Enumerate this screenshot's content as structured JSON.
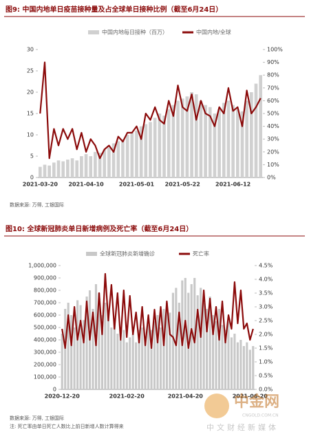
{
  "chart_data": [
    {
      "type": "combo",
      "title": "图9: 中国内地单日疫苗接种量及占全球单日接种比例（截至6月24日）",
      "source": "数据来源: 万得, 工银国际",
      "legend": "top",
      "grid": false,
      "categories": [
        "2021-03-20",
        null,
        null,
        null,
        null,
        null,
        null,
        null,
        null,
        null,
        "2021-04-10",
        null,
        null,
        null,
        null,
        null,
        null,
        null,
        null,
        null,
        null,
        "2021-05-01",
        null,
        null,
        null,
        null,
        null,
        null,
        null,
        null,
        null,
        "2021-05-22",
        null,
        null,
        null,
        null,
        null,
        null,
        null,
        null,
        null,
        null,
        "2021-06-12",
        null,
        null,
        null,
        null,
        null,
        null
      ],
      "ylim": [
        0,
        30
      ],
      "yticks": [
        0,
        5,
        10,
        15,
        20,
        25,
        30
      ],
      "y2lim": [
        0,
        100
      ],
      "y2ticks": [
        {
          "value": 0,
          "label": "0%"
        },
        {
          "value": 10,
          "label": "10%"
        },
        {
          "value": 20,
          "label": "20%"
        },
        {
          "value": 30,
          "label": "30%"
        },
        {
          "value": 40,
          "label": "40%"
        },
        {
          "value": 50,
          "label": "50%"
        },
        {
          "value": 60,
          "label": "60%"
        },
        {
          "value": 70,
          "label": "70%"
        },
        {
          "value": 80,
          "label": "80%"
        },
        {
          "value": 90,
          "label": "90%"
        },
        {
          "value": 100,
          "label": "100%"
        }
      ],
      "series": [
        {
          "name": "中国内地每日接种（百万）",
          "kind": "bar",
          "color": "#d0d0d0",
          "values": [
            2.5,
            3.0,
            2.8,
            3.5,
            4.0,
            3.8,
            4.2,
            4.5,
            4.0,
            5.0,
            5.5,
            5.0,
            6.0,
            5.8,
            6.5,
            7.0,
            8.0,
            8.5,
            9.0,
            10.0,
            10.5,
            11.0,
            12.0,
            12.5,
            13.0,
            14.0,
            15.0,
            14.5,
            16.0,
            17.0,
            18.0,
            18.5,
            19.0,
            20.0,
            19.5,
            18.0,
            17.0,
            16.5,
            15.0,
            16.0,
            17.5,
            18.0,
            17.0,
            16.0,
            15.5,
            18.0,
            20.0,
            22.0,
            24.0
          ]
        },
        {
          "name": "中国内地/全球",
          "kind": "line",
          "axis": "y2",
          "color": "#8b0a0a",
          "values": [
            50,
            90,
            15,
            38,
            25,
            38,
            30,
            38,
            22,
            35,
            20,
            30,
            25,
            15,
            22,
            25,
            20,
            32,
            28,
            35,
            35,
            40,
            30,
            50,
            45,
            55,
            45,
            42,
            60,
            48,
            72,
            55,
            52,
            65,
            45,
            60,
            50,
            48,
            40,
            55,
            50,
            70,
            52,
            55,
            40,
            68,
            50,
            55,
            62
          ]
        }
      ]
    },
    {
      "type": "combo",
      "title": "图10: 全球新冠肺炎单日新增病例及死亡率（截至6月24日）",
      "source": "数据来源: 万得, 工银国际",
      "note": "注: 死亡率由单日死亡人数比上前日新增人数计算得来",
      "legend": "top",
      "grid": false,
      "categories": [
        "2020-12-20",
        null,
        null,
        null,
        null,
        null,
        null,
        null,
        null,
        null,
        null,
        null,
        null,
        null,
        null,
        null,
        null,
        null,
        null,
        null,
        null,
        "2021-02-20",
        null,
        null,
        null,
        null,
        null,
        null,
        null,
        null,
        null,
        null,
        null,
        null,
        null,
        null,
        null,
        null,
        null,
        null,
        "2021-04-20",
        null,
        null,
        null,
        null,
        null,
        null,
        null,
        null,
        null,
        null,
        null,
        null,
        null,
        null,
        null,
        null,
        null,
        null,
        null,
        null,
        "2021-06-20",
        null
      ],
      "ylim": [
        0,
        1000000
      ],
      "yticks": [
        0,
        {
          "value": 100000,
          "label": "100,000"
        },
        {
          "value": 200000,
          "label": "200,000"
        },
        {
          "value": 300000,
          "label": "300,000"
        },
        {
          "value": 400000,
          "label": "400,000"
        },
        {
          "value": 500000,
          "label": "500,000"
        },
        {
          "value": 600000,
          "label": "600,000"
        },
        {
          "value": 700000,
          "label": "700,000"
        },
        {
          "value": 800000,
          "label": "800,000"
        },
        {
          "value": 900000,
          "label": "900,000"
        },
        {
          "value": 1000000,
          "label": "1,000,000"
        }
      ],
      "y2lim": [
        0,
        4.5
      ],
      "y2ticks": [
        {
          "value": 0,
          "label": "0.0%"
        },
        {
          "value": 0.5,
          "label": "0.5%"
        },
        {
          "value": 1,
          "label": "1.0%"
        },
        {
          "value": 1.5,
          "label": "1.5%"
        },
        {
          "value": 2,
          "label": "2.0%"
        },
        {
          "value": 2.5,
          "label": "2.5%"
        },
        {
          "value": 3,
          "label": "3.0%"
        },
        {
          "value": 3.5,
          "label": "3.5%"
        },
        {
          "value": 4,
          "label": "4.0%"
        },
        {
          "value": 4.5,
          "label": "4.5%"
        }
      ],
      "series": [
        {
          "name": "全球新冠肺炎新增确诊",
          "kind": "bar",
          "color": "#c8c8c8",
          "values": [
            450000,
            650000,
            700000,
            600000,
            500000,
            720000,
            680000,
            560000,
            750000,
            800000,
            650000,
            850000,
            780000,
            600000,
            700000,
            620000,
            500000,
            550000,
            450000,
            400000,
            480000,
            380000,
            420000,
            450000,
            380000,
            480000,
            500000,
            420000,
            520000,
            480000,
            550000,
            600000,
            500000,
            650000,
            700000,
            620000,
            780000,
            820000,
            700000,
            880000,
            900000,
            780000,
            850000,
            900000,
            760000,
            820000,
            700000,
            650000,
            750000,
            600000,
            550000,
            650000,
            520000,
            480000,
            550000,
            420000,
            450000,
            380000,
            400000,
            350000,
            380000,
            320000,
            350000
          ]
        },
        {
          "name": "死亡率",
          "kind": "line",
          "axis": "y2",
          "color": "#8b0a0a",
          "values": [
            2.2,
            1.5,
            2.7,
            1.6,
            3.0,
            1.8,
            2.5,
            1.7,
            3.2,
            1.8,
            2.8,
            1.6,
            3.5,
            2.0,
            4.2,
            2.5,
            3.8,
            2.2,
            3.5,
            1.8,
            3.6,
            1.9,
            3.4,
            2.0,
            2.8,
            1.7,
            3.0,
            1.6,
            2.7,
            1.5,
            2.9,
            1.7,
            3.0,
            1.6,
            3.2,
            2.0,
            1.9,
            1.6,
            2.8,
            1.6,
            2.5,
            1.5,
            2.2,
            1.7,
            2.9,
            1.9,
            3.6,
            2.1,
            3.3,
            2.0,
            3.0,
            1.8,
            3.2,
            1.7,
            2.7,
            2.2,
            3.9,
            2.4,
            3.6,
            2.2,
            2.4,
            1.8,
            2.2
          ]
        }
      ]
    }
  ],
  "watermark": {
    "name": "中金网",
    "site": "CNGOLD.COM.CN",
    "slogan": "中文财经新媒体"
  }
}
